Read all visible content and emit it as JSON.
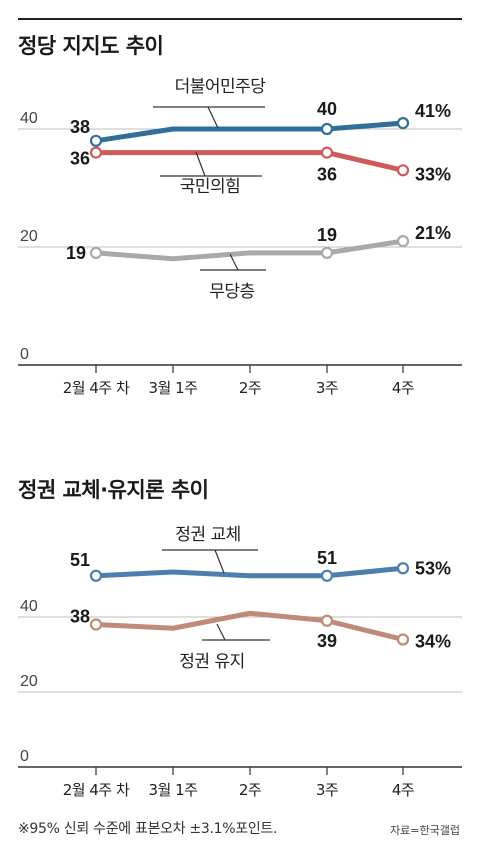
{
  "chart_data": [
    {
      "type": "line",
      "title": "정당 지지도 추이",
      "categories": [
        "2월 4주 차",
        "3월 1주",
        "2주",
        "3주",
        "4주"
      ],
      "ylim": [
        0,
        50
      ],
      "yticks": [
        "0",
        "20",
        "40"
      ],
      "grid": true,
      "series": [
        {
          "name": "더불어민주당",
          "color": "#2f6f9a",
          "values": [
            38,
            40,
            40,
            40,
            41
          ],
          "labels": [
            "38",
            "",
            "",
            "40",
            "41%"
          ]
        },
        {
          "name": "국민의힘",
          "color": "#cf5a5a",
          "values": [
            36,
            36,
            36,
            36,
            33
          ],
          "labels": [
            "36",
            "",
            "",
            "36",
            "33%"
          ]
        },
        {
          "name": "무당층",
          "color": "#a9a9a9",
          "values": [
            19,
            18,
            19,
            19,
            21
          ],
          "labels": [
            "19",
            "",
            "",
            "19",
            "21%"
          ]
        }
      ]
    },
    {
      "type": "line",
      "title": "정권 교체·유지론 추이",
      "categories": [
        "2월 4주 차",
        "3월 1주",
        "2주",
        "3주",
        "4주"
      ],
      "ylim": [
        0,
        60
      ],
      "yticks": [
        "0",
        "20",
        "40"
      ],
      "grid": true,
      "series": [
        {
          "name": "정권 교체",
          "color": "#4c7fae",
          "values": [
            51,
            52,
            51,
            51,
            53
          ],
          "labels": [
            "51",
            "",
            "",
            "51",
            "53%"
          ]
        },
        {
          "name": "정권 유지",
          "color": "#c08a79",
          "values": [
            38,
            37,
            41,
            39,
            34
          ],
          "labels": [
            "38",
            "",
            "",
            "39",
            "34%"
          ]
        }
      ]
    }
  ],
  "footnote": "※95% 신뢰 수준에 표본오차 ±3.1%포인트.",
  "source": "자료=한국갤럽"
}
